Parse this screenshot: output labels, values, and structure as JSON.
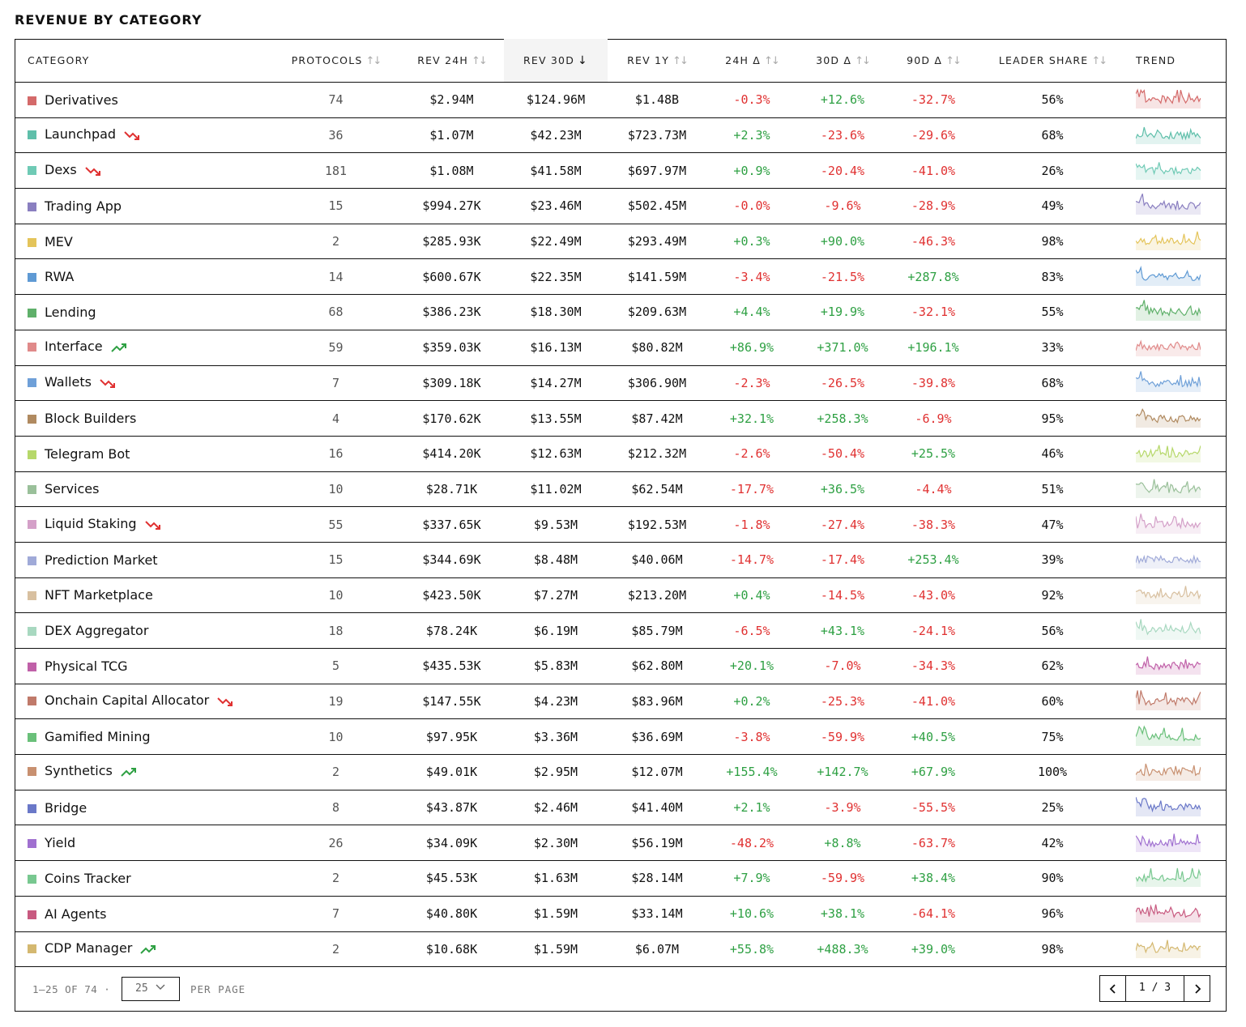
{
  "title": "REVENUE BY CATEGORY",
  "headers": {
    "category": "CATEGORY",
    "protocols": "PROTOCOLS",
    "rev24h": "REV 24H",
    "rev30d": "REV 30D",
    "rev1y": "REV 1Y",
    "d24h": "24H Δ",
    "d30d": "30D Δ",
    "d90d": "90D Δ",
    "leader": "LEADER SHARE",
    "trend": "TREND"
  },
  "sorted_column": "rev30d",
  "rows": [
    {
      "category": "Derivatives",
      "color": "#d46a6a",
      "trend_arrow": "",
      "protocols": "74",
      "rev24h": "$2.94M",
      "rev30d": "$124.96M",
      "rev1y": "$1.48B",
      "d24h": "-0.3%",
      "d30d": "+12.6%",
      "d90d": "-32.7%",
      "leader": "56%"
    },
    {
      "category": "Launchpad",
      "color": "#5fbfaa",
      "trend_arrow": "down",
      "protocols": "36",
      "rev24h": "$1.07M",
      "rev30d": "$42.23M",
      "rev1y": "$723.73M",
      "d24h": "+2.3%",
      "d30d": "-23.6%",
      "d90d": "-29.6%",
      "leader": "68%"
    },
    {
      "category": "Dexs",
      "color": "#6fcab5",
      "trend_arrow": "down",
      "protocols": "181",
      "rev24h": "$1.08M",
      "rev30d": "$41.58M",
      "rev1y": "$697.97M",
      "d24h": "+0.9%",
      "d30d": "-20.4%",
      "d90d": "-41.0%",
      "leader": "26%"
    },
    {
      "category": "Trading App",
      "color": "#8a7fc0",
      "trend_arrow": "",
      "protocols": "15",
      "rev24h": "$994.27K",
      "rev30d": "$23.46M",
      "rev1y": "$502.45M",
      "d24h": "-0.0%",
      "d30d": "-9.6%",
      "d90d": "-28.9%",
      "leader": "49%"
    },
    {
      "category": "MEV",
      "color": "#e4c45a",
      "trend_arrow": "",
      "protocols": "2",
      "rev24h": "$285.93K",
      "rev30d": "$22.49M",
      "rev1y": "$293.49M",
      "d24h": "+0.3%",
      "d30d": "+90.0%",
      "d90d": "-46.3%",
      "leader": "98%"
    },
    {
      "category": "RWA",
      "color": "#5f9ad4",
      "trend_arrow": "",
      "protocols": "14",
      "rev24h": "$600.67K",
      "rev30d": "$22.35M",
      "rev1y": "$141.59M",
      "d24h": "-3.4%",
      "d30d": "-21.5%",
      "d90d": "+287.8%",
      "leader": "83%"
    },
    {
      "category": "Lending",
      "color": "#5fb06a",
      "trend_arrow": "",
      "protocols": "68",
      "rev24h": "$386.23K",
      "rev30d": "$18.30M",
      "rev1y": "$209.63M",
      "d24h": "+4.4%",
      "d30d": "+19.9%",
      "d90d": "-32.1%",
      "leader": "55%"
    },
    {
      "category": "Interface",
      "color": "#e08a8a",
      "trend_arrow": "up",
      "protocols": "59",
      "rev24h": "$359.03K",
      "rev30d": "$16.13M",
      "rev1y": "$80.82M",
      "d24h": "+86.9%",
      "d30d": "+371.0%",
      "d90d": "+196.1%",
      "leader": "33%"
    },
    {
      "category": "Wallets",
      "color": "#6fa0d8",
      "trend_arrow": "down",
      "protocols": "7",
      "rev24h": "$309.18K",
      "rev30d": "$14.27M",
      "rev1y": "$306.90M",
      "d24h": "-2.3%",
      "d30d": "-26.5%",
      "d90d": "-39.8%",
      "leader": "68%"
    },
    {
      "category": "Block Builders",
      "color": "#b08a60",
      "trend_arrow": "",
      "protocols": "4",
      "rev24h": "$170.62K",
      "rev30d": "$13.55M",
      "rev1y": "$87.42M",
      "d24h": "+32.1%",
      "d30d": "+258.3%",
      "d90d": "-6.9%",
      "leader": "95%"
    },
    {
      "category": "Telegram Bot",
      "color": "#b6d86a",
      "trend_arrow": "",
      "protocols": "16",
      "rev24h": "$414.20K",
      "rev30d": "$12.63M",
      "rev1y": "$212.32M",
      "d24h": "-2.6%",
      "d30d": "-50.4%",
      "d90d": "+25.5%",
      "leader": "46%"
    },
    {
      "category": "Services",
      "color": "#9ac09a",
      "trend_arrow": "",
      "protocols": "10",
      "rev24h": "$28.71K",
      "rev30d": "$11.02M",
      "rev1y": "$62.54M",
      "d24h": "-17.7%",
      "d30d": "+36.5%",
      "d90d": "-4.4%",
      "leader": "51%"
    },
    {
      "category": "Liquid Staking",
      "color": "#d4a0c8",
      "trend_arrow": "down",
      "protocols": "55",
      "rev24h": "$337.65K",
      "rev30d": "$9.53M",
      "rev1y": "$192.53M",
      "d24h": "-1.8%",
      "d30d": "-27.4%",
      "d90d": "-38.3%",
      "leader": "47%"
    },
    {
      "category": "Prediction Market",
      "color": "#a0aad8",
      "trend_arrow": "",
      "protocols": "15",
      "rev24h": "$344.69K",
      "rev30d": "$8.48M",
      "rev1y": "$40.06M",
      "d24h": "-14.7%",
      "d30d": "-17.4%",
      "d90d": "+253.4%",
      "leader": "39%"
    },
    {
      "category": "NFT Marketplace",
      "color": "#d8c0a0",
      "trend_arrow": "",
      "protocols": "10",
      "rev24h": "$423.50K",
      "rev30d": "$7.27M",
      "rev1y": "$213.20M",
      "d24h": "+0.4%",
      "d30d": "-14.5%",
      "d90d": "-43.0%",
      "leader": "92%"
    },
    {
      "category": "DEX Aggregator",
      "color": "#a8d8c0",
      "trend_arrow": "",
      "protocols": "18",
      "rev24h": "$78.24K",
      "rev30d": "$6.19M",
      "rev1y": "$85.79M",
      "d24h": "-6.5%",
      "d30d": "+43.1%",
      "d90d": "-24.1%",
      "leader": "56%"
    },
    {
      "category": "Physical TCG",
      "color": "#c060a8",
      "trend_arrow": "",
      "protocols": "5",
      "rev24h": "$435.53K",
      "rev30d": "$5.83M",
      "rev1y": "$62.80M",
      "d24h": "+20.1%",
      "d30d": "-7.0%",
      "d90d": "-34.3%",
      "leader": "62%"
    },
    {
      "category": "Onchain Capital Allocator",
      "color": "#c07a6a",
      "trend_arrow": "down",
      "protocols": "19",
      "rev24h": "$147.55K",
      "rev30d": "$4.23M",
      "rev1y": "$83.96M",
      "d24h": "+0.2%",
      "d30d": "-25.3%",
      "d90d": "-41.0%",
      "leader": "60%"
    },
    {
      "category": "Gamified Mining",
      "color": "#6ac07a",
      "trend_arrow": "",
      "protocols": "10",
      "rev24h": "$97.95K",
      "rev30d": "$3.36M",
      "rev1y": "$36.69M",
      "d24h": "-3.8%",
      "d30d": "-59.9%",
      "d90d": "+40.5%",
      "leader": "75%"
    },
    {
      "category": "Synthetics",
      "color": "#c89070",
      "trend_arrow": "up",
      "protocols": "2",
      "rev24h": "$49.01K",
      "rev30d": "$2.95M",
      "rev1y": "$12.07M",
      "d24h": "+155.4%",
      "d30d": "+142.7%",
      "d90d": "+67.9%",
      "leader": "100%"
    },
    {
      "category": "Bridge",
      "color": "#6a78c8",
      "trend_arrow": "",
      "protocols": "8",
      "rev24h": "$43.87K",
      "rev30d": "$2.46M",
      "rev1y": "$41.40M",
      "d24h": "+2.1%",
      "d30d": "-3.9%",
      "d90d": "-55.5%",
      "leader": "25%"
    },
    {
      "category": "Yield",
      "color": "#a070d0",
      "trend_arrow": "",
      "protocols": "26",
      "rev24h": "$34.09K",
      "rev30d": "$2.30M",
      "rev1y": "$56.19M",
      "d24h": "-48.2%",
      "d30d": "+8.8%",
      "d90d": "-63.7%",
      "leader": "42%"
    },
    {
      "category": "Coins Tracker",
      "color": "#78c890",
      "trend_arrow": "",
      "protocols": "2",
      "rev24h": "$45.53K",
      "rev30d": "$1.63M",
      "rev1y": "$28.14M",
      "d24h": "+7.9%",
      "d30d": "-59.9%",
      "d90d": "+38.4%",
      "leader": "90%"
    },
    {
      "category": "AI Agents",
      "color": "#c85a80",
      "trend_arrow": "",
      "protocols": "7",
      "rev24h": "$40.80K",
      "rev30d": "$1.59M",
      "rev1y": "$33.14M",
      "d24h": "+10.6%",
      "d30d": "+38.1%",
      "d90d": "-64.1%",
      "leader": "96%"
    },
    {
      "category": "CDP Manager",
      "color": "#d4b870",
      "trend_arrow": "up",
      "protocols": "2",
      "rev24h": "$10.68K",
      "rev30d": "$1.59M",
      "rev1y": "$6.07M",
      "d24h": "+55.8%",
      "d30d": "+488.3%",
      "d90d": "+39.0%",
      "leader": "98%"
    }
  ],
  "footer": {
    "range": "1–25 OF 74 ·",
    "per_page_value": "25",
    "per_page_label": "PER PAGE",
    "page": "1 / 3"
  },
  "colors": {
    "positive": "#2ea043",
    "negative": "#e03131",
    "arrow_down": "#e03131",
    "arrow_up": "#2ea043"
  },
  "icons": {
    "sort": "sort-updown-icon",
    "sort_active": "arrow-down-icon",
    "trend_down": "trend-down-icon",
    "trend_up": "trend-up-icon",
    "prev": "chevron-left-icon",
    "next": "chevron-right-icon",
    "select": "chevron-down-icon"
  }
}
